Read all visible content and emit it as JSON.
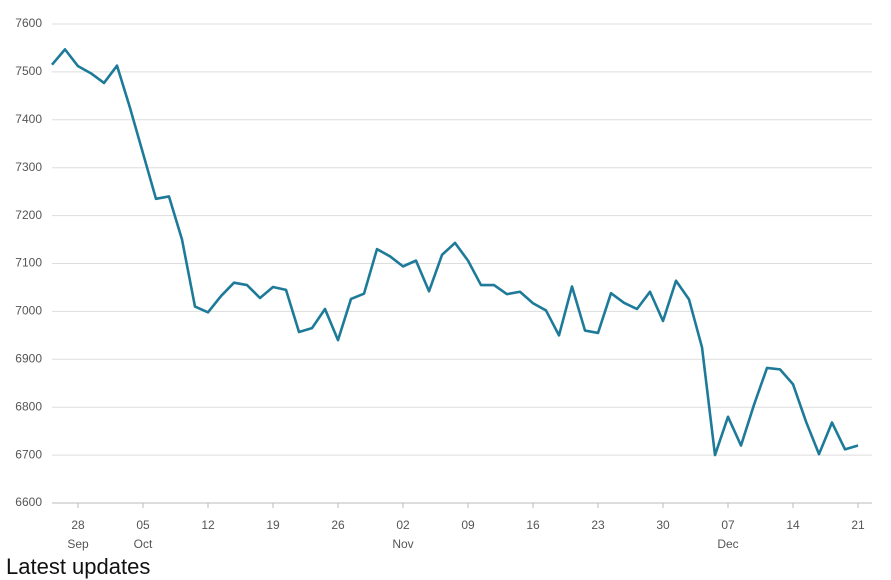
{
  "chart_data": {
    "type": "line",
    "categories": [
      null,
      null,
      "28",
      null,
      null,
      null,
      null,
      "05",
      null,
      null,
      null,
      null,
      "12",
      null,
      null,
      null,
      null,
      "19",
      null,
      null,
      null,
      null,
      "26",
      null,
      null,
      null,
      null,
      "02",
      null,
      null,
      null,
      null,
      "09",
      null,
      null,
      null,
      null,
      "16",
      null,
      null,
      null,
      null,
      "23",
      null,
      null,
      null,
      null,
      "30",
      null,
      null,
      null,
      null,
      "07",
      null,
      null,
      null,
      null,
      "14",
      null,
      null,
      null,
      null,
      "21"
    ],
    "month_labels": [
      null,
      null,
      "Sep",
      null,
      null,
      null,
      null,
      "Oct",
      null,
      null,
      null,
      null,
      null,
      null,
      null,
      null,
      null,
      null,
      null,
      null,
      null,
      null,
      null,
      null,
      null,
      null,
      null,
      "Nov",
      null,
      null,
      null,
      null,
      null,
      null,
      null,
      null,
      null,
      null,
      null,
      null,
      null,
      null,
      null,
      null,
      null,
      null,
      null,
      null,
      null,
      null,
      null,
      null,
      "Dec",
      null,
      null,
      null,
      null,
      null,
      null,
      null,
      null,
      null,
      null
    ],
    "series": [
      {
        "color": "#1d7a99",
        "values": [
          7515,
          7547,
          7512,
          7497,
          7477,
          7513,
          7425,
          7330,
          7235,
          7240,
          7150,
          7010,
          6998,
          7032,
          7060,
          7055,
          7028,
          7051,
          7045,
          6957,
          6965,
          7005,
          6940,
          7026,
          7037,
          7130,
          7115,
          7094,
          7106,
          7042,
          7118,
          7143,
          7106,
          7055,
          7055,
          7036,
          7041,
          7017,
          7002,
          6950,
          7052,
          6960,
          6955,
          7038,
          7018,
          7005,
          7041,
          6980,
          7064,
          7025,
          6925,
          6700,
          6780,
          6720,
          6805,
          6882,
          6879,
          6848,
          6770,
          6702,
          6768,
          6712,
          6720
        ]
      }
    ],
    "ylim": [
      6600,
      7600
    ],
    "yticks": [
      6600,
      6700,
      6800,
      6900,
      7000,
      7100,
      7200,
      7300,
      7400,
      7500,
      7600
    ],
    "grid": true
  },
  "footer_heading": "Latest updates"
}
